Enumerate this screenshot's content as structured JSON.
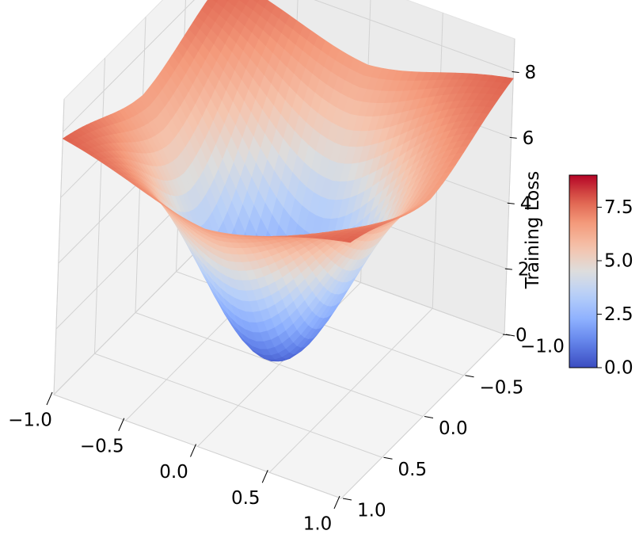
{
  "chart_data": {
    "type": "surface3d",
    "title": "",
    "xlabel": "",
    "ylabel": "",
    "zlabel": "Training Loss",
    "colormap": "coolwarm",
    "x_range": [
      -1.0,
      1.0
    ],
    "y_range": [
      -1.0,
      1.0
    ],
    "z_range": [
      0,
      9
    ],
    "x_ticks": [
      "−1.0",
      "−0.5",
      "0.0",
      "0.5",
      "1.0"
    ],
    "x_tick_values": [
      -1.0,
      -0.5,
      0.0,
      0.5,
      1.0
    ],
    "y_ticks": [
      "−1.0",
      "−0.5",
      "0.0",
      "0.5",
      "1.0"
    ],
    "y_tick_values": [
      -1.0,
      -0.5,
      0.0,
      0.5,
      1.0
    ],
    "z_ticks": [
      "0",
      "2",
      "4",
      "6",
      "8"
    ],
    "z_tick_values": [
      0,
      2,
      4,
      6,
      8
    ],
    "surface_description": "bowl-shaped basin with minimum near 0.2 at (0,0), rising to a plateau of about 7.5-8 at the edges",
    "surface_samples": {
      "x": [
        -1.0,
        -0.5,
        0.0,
        0.5,
        1.0
      ],
      "y": [
        -1.0,
        -0.5,
        0.0,
        0.5,
        1.0
      ],
      "z": [
        [
          7.9,
          7.7,
          7.5,
          7.7,
          7.9
        ],
        [
          7.7,
          5.2,
          3.2,
          5.2,
          7.7
        ],
        [
          7.5,
          3.2,
          0.2,
          3.2,
          7.5
        ],
        [
          7.7,
          5.2,
          3.2,
          5.2,
          7.7
        ],
        [
          7.9,
          7.7,
          7.5,
          7.7,
          7.9
        ]
      ]
    },
    "colorbar": {
      "min": 0.0,
      "max": 9.0,
      "ticks": [
        "0.0",
        "2.5",
        "5.0",
        "7.5"
      ],
      "tick_values": [
        0.0,
        2.5,
        5.0,
        7.5
      ]
    }
  }
}
